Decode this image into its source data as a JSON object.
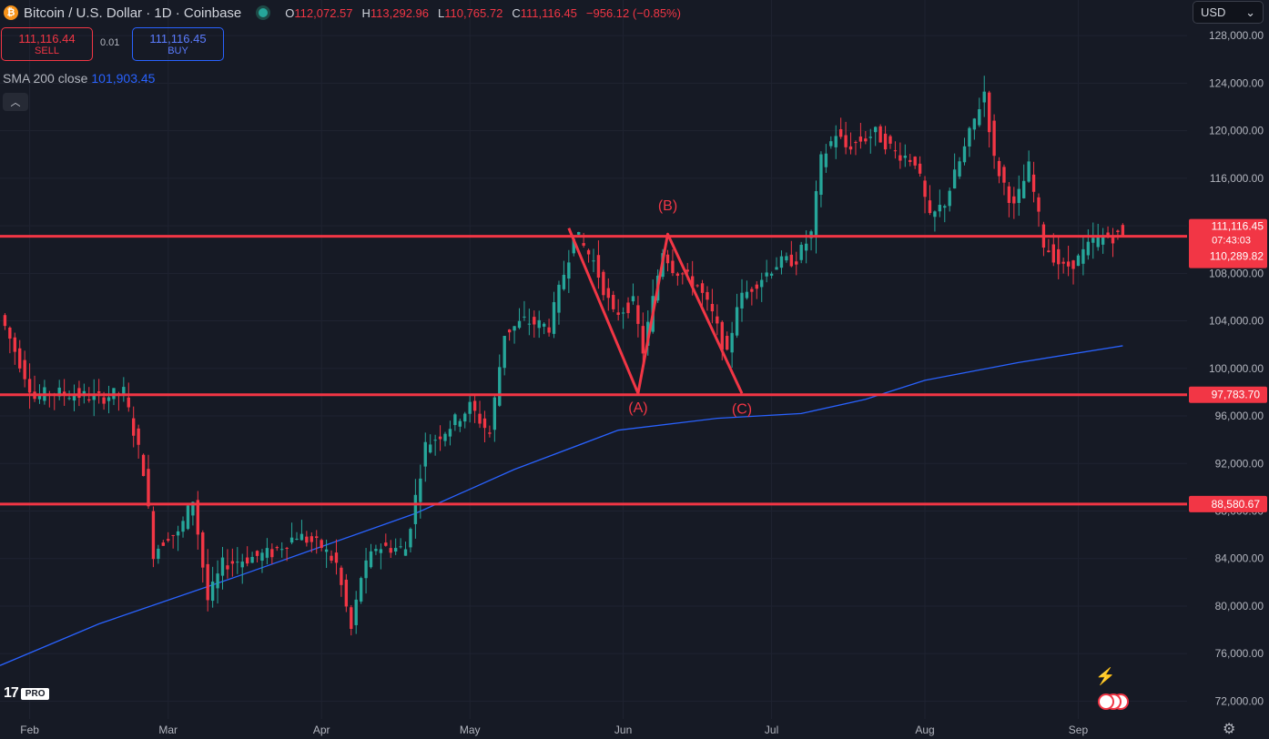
{
  "header": {
    "symbol": "Bitcoin / U.S. Dollar · 1D · Coinbase",
    "icon": "bitcoin-icon",
    "ohlc": {
      "o_label": "O",
      "o": "112,072.57",
      "h_label": "H",
      "h": "113,292.96",
      "l_label": "L",
      "l": "110,765.72",
      "c_label": "C",
      "c": "111,116.45",
      "change": "−956.12 (−0.85%)"
    }
  },
  "trade": {
    "sell_price": "111,116.44",
    "sell_label": "SELL",
    "spread": "0.01",
    "buy_price": "111,116.45",
    "buy_label": "BUY"
  },
  "indicator": {
    "label": "SMA 200 close",
    "value": "101,903.45"
  },
  "currency": "USD",
  "logo": {
    "mark": "17",
    "badge": "PRO"
  },
  "colors": {
    "bg": "#161a25",
    "up": "#26a69a",
    "down": "#f23645",
    "sma": "#2962ff",
    "level": "#f23645"
  },
  "chart_data": {
    "type": "candlestick",
    "title": "Bitcoin / U.S. Dollar · 1D · Coinbase",
    "ylim": [
      70500,
      131000
    ],
    "yticks": [
      72000,
      76000,
      80000,
      84000,
      88000,
      92000,
      96000,
      100000,
      104000,
      108000,
      112000,
      116000,
      120000,
      124000,
      128000
    ],
    "ytick_labels": [
      "72,000.00",
      "76,000.00",
      "80,000.00",
      "84,000.00",
      "88,000.00",
      "92,000.00",
      "96,000.00",
      "100,000.00",
      "104,000.00",
      "108,000.00",
      "112,000.00",
      "116,000.00",
      "120,000.00",
      "124,000.00",
      "128,000.00"
    ],
    "xlim": [
      "2025-01-26",
      "2025-09-23"
    ],
    "xticks": [
      "2025-02-01",
      "2025-03-01",
      "2025-04-01",
      "2025-05-01",
      "2025-06-01",
      "2025-07-01",
      "2025-08-01",
      "2025-09-01"
    ],
    "xtick_labels": [
      "Feb",
      "Mar",
      "Apr",
      "May",
      "Jun",
      "Jul",
      "Aug",
      "Sep"
    ],
    "candles": [
      {
        "x": "2025-01-26",
        "close": 104500
      },
      {
        "x": "2025-02-02",
        "close": 97500
      },
      {
        "x": "2025-02-05",
        "close": 98000
      },
      {
        "x": "2025-02-10",
        "close": 97800
      },
      {
        "x": "2025-02-15",
        "close": 97500
      },
      {
        "x": "2025-02-20",
        "close": 98000
      },
      {
        "x": "2025-02-24",
        "close": 91500
      },
      {
        "x": "2025-02-26",
        "close": 84500
      },
      {
        "x": "2025-03-01",
        "close": 86000
      },
      {
        "x": "2025-03-03",
        "close": 86000
      },
      {
        "x": "2025-03-06",
        "close": 89000
      },
      {
        "x": "2025-03-09",
        "close": 80500
      },
      {
        "x": "2025-03-12",
        "close": 83500
      },
      {
        "x": "2025-03-17",
        "close": 84000
      },
      {
        "x": "2025-03-22",
        "close": 84500
      },
      {
        "x": "2025-03-27",
        "close": 86000
      },
      {
        "x": "2025-04-01",
        "close": 85000
      },
      {
        "x": "2025-04-04",
        "close": 83500
      },
      {
        "x": "2025-04-07",
        "close": 78000
      },
      {
        "x": "2025-04-09",
        "close": 82500
      },
      {
        "x": "2025-04-12",
        "close": 85000
      },
      {
        "x": "2025-04-18",
        "close": 84800
      },
      {
        "x": "2025-04-22",
        "close": 93500
      },
      {
        "x": "2025-04-26",
        "close": 94800
      },
      {
        "x": "2025-05-01",
        "close": 96800
      },
      {
        "x": "2025-05-05",
        "close": 94500
      },
      {
        "x": "2025-05-08",
        "close": 103000
      },
      {
        "x": "2025-05-12",
        "close": 104000
      },
      {
        "x": "2025-05-17",
        "close": 103500
      },
      {
        "x": "2025-05-21",
        "close": 109500
      },
      {
        "x": "2025-05-22",
        "close": 111500
      },
      {
        "x": "2025-05-26",
        "close": 109000
      },
      {
        "x": "2025-05-30",
        "close": 104500
      },
      {
        "x": "2025-06-03",
        "close": 105500
      },
      {
        "x": "2025-06-05",
        "close": 101500
      },
      {
        "x": "2025-06-09",
        "close": 110000
      },
      {
        "x": "2025-06-11",
        "close": 108500
      },
      {
        "x": "2025-06-16",
        "close": 107000
      },
      {
        "x": "2025-06-19",
        "close": 104500
      },
      {
        "x": "2025-06-22",
        "close": 101000
      },
      {
        "x": "2025-06-24",
        "close": 105500
      },
      {
        "x": "2025-06-28",
        "close": 107300
      },
      {
        "x": "2025-07-02",
        "close": 108800
      },
      {
        "x": "2025-07-06",
        "close": 109200
      },
      {
        "x": "2025-07-09",
        "close": 111300
      },
      {
        "x": "2025-07-11",
        "close": 117500
      },
      {
        "x": "2025-07-14",
        "close": 119800
      },
      {
        "x": "2025-07-16",
        "close": 118600
      },
      {
        "x": "2025-07-22",
        "close": 119800
      },
      {
        "x": "2025-07-26",
        "close": 118200
      },
      {
        "x": "2025-07-30",
        "close": 117500
      },
      {
        "x": "2025-08-02",
        "close": 112500
      },
      {
        "x": "2025-08-05",
        "close": 114000
      },
      {
        "x": "2025-08-09",
        "close": 118500
      },
      {
        "x": "2025-08-13",
        "close": 123300
      },
      {
        "x": "2025-08-15",
        "close": 117500
      },
      {
        "x": "2025-08-19",
        "close": 113500
      },
      {
        "x": "2025-08-22",
        "close": 116900
      },
      {
        "x": "2025-08-25",
        "close": 110500
      },
      {
        "x": "2025-08-29",
        "close": 108400
      },
      {
        "x": "2025-09-01",
        "close": 109200
      },
      {
        "x": "2025-09-04",
        "close": 110700
      },
      {
        "x": "2025-09-07",
        "close": 111100
      },
      {
        "x": "2025-09-10",
        "close": 111116.45
      }
    ],
    "sma200": [
      {
        "x": "2025-01-26",
        "y": 75000
      },
      {
        "x": "2025-02-15",
        "y": 78500
      },
      {
        "x": "2025-03-15",
        "y": 82500
      },
      {
        "x": "2025-04-01",
        "y": 85000
      },
      {
        "x": "2025-04-20",
        "y": 87800
      },
      {
        "x": "2025-05-10",
        "y": 91500
      },
      {
        "x": "2025-05-31",
        "y": 94800
      },
      {
        "x": "2025-06-20",
        "y": 95800
      },
      {
        "x": "2025-07-07",
        "y": 96200
      },
      {
        "x": "2025-07-20",
        "y": 97400
      },
      {
        "x": "2025-08-01",
        "y": 99000
      },
      {
        "x": "2025-08-20",
        "y": 100500
      },
      {
        "x": "2025-09-10",
        "y": 101903.45
      }
    ],
    "levels": [
      {
        "y": 111116.45,
        "label": "111,116.45",
        "sub": "07:43:03",
        "sub2": "110,289.82"
      },
      {
        "y": 97783.7,
        "label": "97,783.70"
      },
      {
        "y": 88580.67,
        "label": "88,580.67"
      }
    ],
    "pattern": {
      "points": [
        {
          "x": "2025-05-21",
          "y": 111800
        },
        {
          "x": "2025-06-04",
          "y": 97900
        },
        {
          "x": "2025-06-10",
          "y": 111300
        },
        {
          "x": "2025-06-25",
          "y": 97900
        }
      ],
      "labels": [
        {
          "text": "(A)",
          "x": "2025-06-04",
          "y": 96300
        },
        {
          "text": "(B)",
          "x": "2025-06-10",
          "y": 113300
        },
        {
          "text": "(C)",
          "x": "2025-06-25",
          "y": 96200
        }
      ]
    }
  }
}
